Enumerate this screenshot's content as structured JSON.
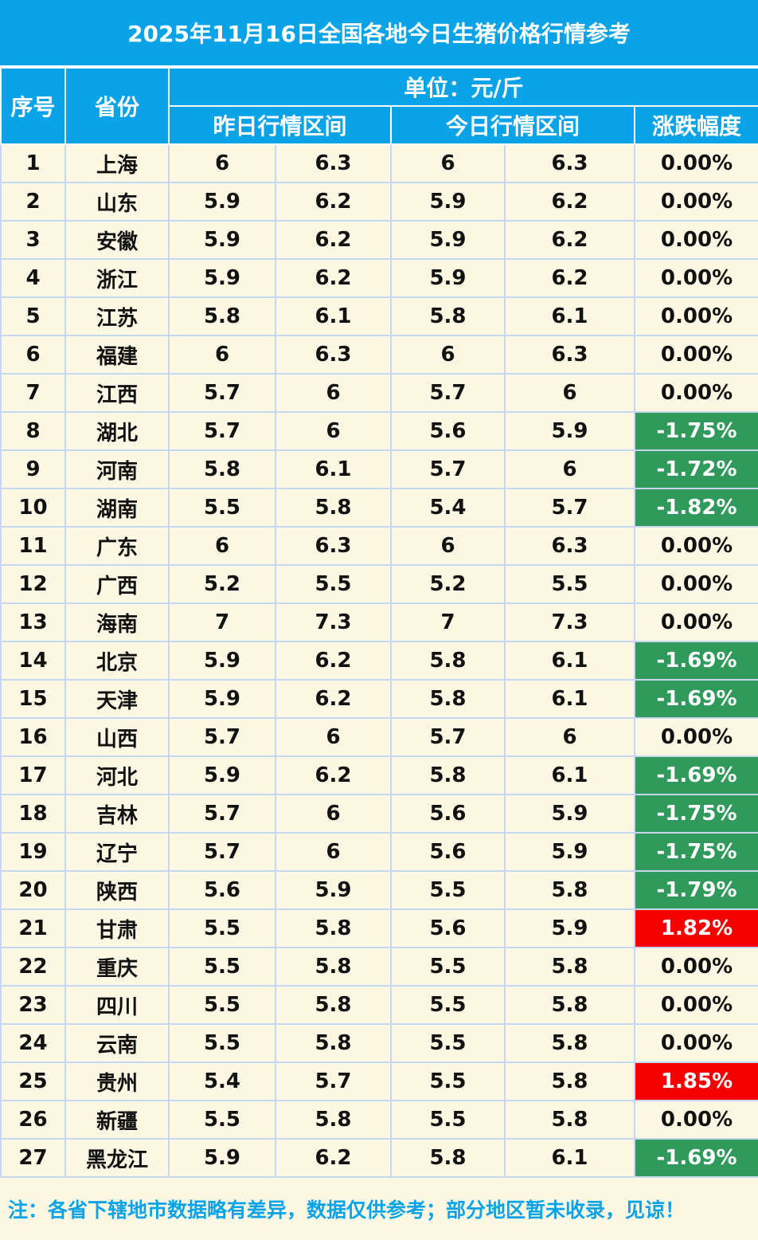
{
  "title": "2025年11月16日全国各地今日生猪价格行情参考",
  "headers": {
    "index": "序号",
    "province": "省份",
    "unit": "单位：元/斤",
    "yesterday": "昨日行情区间",
    "today": "今日行情区间",
    "change": "涨跌幅度"
  },
  "colors": {
    "header_bg": "#0aa3e8",
    "page_bg": "#fdf8e4",
    "decrease_bg": "#2f9a5c",
    "increase_bg": "#f40000",
    "note_text": "#0aa3e8"
  },
  "rows": [
    {
      "no": "1",
      "province": "上海",
      "y_low": "6",
      "y_high": "6.3",
      "t_low": "6",
      "t_high": "6.3",
      "change": "0.00%",
      "trend": "flat"
    },
    {
      "no": "2",
      "province": "山东",
      "y_low": "5.9",
      "y_high": "6.2",
      "t_low": "5.9",
      "t_high": "6.2",
      "change": "0.00%",
      "trend": "flat"
    },
    {
      "no": "3",
      "province": "安徽",
      "y_low": "5.9",
      "y_high": "6.2",
      "t_low": "5.9",
      "t_high": "6.2",
      "change": "0.00%",
      "trend": "flat"
    },
    {
      "no": "4",
      "province": "浙江",
      "y_low": "5.9",
      "y_high": "6.2",
      "t_low": "5.9",
      "t_high": "6.2",
      "change": "0.00%",
      "trend": "flat"
    },
    {
      "no": "5",
      "province": "江苏",
      "y_low": "5.8",
      "y_high": "6.1",
      "t_low": "5.8",
      "t_high": "6.1",
      "change": "0.00%",
      "trend": "flat"
    },
    {
      "no": "6",
      "province": "福建",
      "y_low": "6",
      "y_high": "6.3",
      "t_low": "6",
      "t_high": "6.3",
      "change": "0.00%",
      "trend": "flat"
    },
    {
      "no": "7",
      "province": "江西",
      "y_low": "5.7",
      "y_high": "6",
      "t_low": "5.7",
      "t_high": "6",
      "change": "0.00%",
      "trend": "flat"
    },
    {
      "no": "8",
      "province": "湖北",
      "y_low": "5.7",
      "y_high": "6",
      "t_low": "5.6",
      "t_high": "5.9",
      "change": "-1.75%",
      "trend": "down"
    },
    {
      "no": "9",
      "province": "河南",
      "y_low": "5.8",
      "y_high": "6.1",
      "t_low": "5.7",
      "t_high": "6",
      "change": "-1.72%",
      "trend": "down"
    },
    {
      "no": "10",
      "province": "湖南",
      "y_low": "5.5",
      "y_high": "5.8",
      "t_low": "5.4",
      "t_high": "5.7",
      "change": "-1.82%",
      "trend": "down"
    },
    {
      "no": "11",
      "province": "广东",
      "y_low": "6",
      "y_high": "6.3",
      "t_low": "6",
      "t_high": "6.3",
      "change": "0.00%",
      "trend": "flat"
    },
    {
      "no": "12",
      "province": "广西",
      "y_low": "5.2",
      "y_high": "5.5",
      "t_low": "5.2",
      "t_high": "5.5",
      "change": "0.00%",
      "trend": "flat"
    },
    {
      "no": "13",
      "province": "海南",
      "y_low": "7",
      "y_high": "7.3",
      "t_low": "7",
      "t_high": "7.3",
      "change": "0.00%",
      "trend": "flat"
    },
    {
      "no": "14",
      "province": "北京",
      "y_low": "5.9",
      "y_high": "6.2",
      "t_low": "5.8",
      "t_high": "6.1",
      "change": "-1.69%",
      "trend": "down"
    },
    {
      "no": "15",
      "province": "天津",
      "y_low": "5.9",
      "y_high": "6.2",
      "t_low": "5.8",
      "t_high": "6.1",
      "change": "-1.69%",
      "trend": "down"
    },
    {
      "no": "16",
      "province": "山西",
      "y_low": "5.7",
      "y_high": "6",
      "t_low": "5.7",
      "t_high": "6",
      "change": "0.00%",
      "trend": "flat"
    },
    {
      "no": "17",
      "province": "河北",
      "y_low": "5.9",
      "y_high": "6.2",
      "t_low": "5.8",
      "t_high": "6.1",
      "change": "-1.69%",
      "trend": "down"
    },
    {
      "no": "18",
      "province": "吉林",
      "y_low": "5.7",
      "y_high": "6",
      "t_low": "5.6",
      "t_high": "5.9",
      "change": "-1.75%",
      "trend": "down"
    },
    {
      "no": "19",
      "province": "辽宁",
      "y_low": "5.7",
      "y_high": "6",
      "t_low": "5.6",
      "t_high": "5.9",
      "change": "-1.75%",
      "trend": "down"
    },
    {
      "no": "20",
      "province": "陕西",
      "y_low": "5.6",
      "y_high": "5.9",
      "t_low": "5.5",
      "t_high": "5.8",
      "change": "-1.79%",
      "trend": "down"
    },
    {
      "no": "21",
      "province": "甘肃",
      "y_low": "5.5",
      "y_high": "5.8",
      "t_low": "5.6",
      "t_high": "5.9",
      "change": "1.82%",
      "trend": "up"
    },
    {
      "no": "22",
      "province": "重庆",
      "y_low": "5.5",
      "y_high": "5.8",
      "t_low": "5.5",
      "t_high": "5.8",
      "change": "0.00%",
      "trend": "flat"
    },
    {
      "no": "23",
      "province": "四川",
      "y_low": "5.5",
      "y_high": "5.8",
      "t_low": "5.5",
      "t_high": "5.8",
      "change": "0.00%",
      "trend": "flat"
    },
    {
      "no": "24",
      "province": "云南",
      "y_low": "5.5",
      "y_high": "5.8",
      "t_low": "5.5",
      "t_high": "5.8",
      "change": "0.00%",
      "trend": "flat"
    },
    {
      "no": "25",
      "province": "贵州",
      "y_low": "5.4",
      "y_high": "5.7",
      "t_low": "5.5",
      "t_high": "5.8",
      "change": "1.85%",
      "trend": "up"
    },
    {
      "no": "26",
      "province": "新疆",
      "y_low": "5.5",
      "y_high": "5.8",
      "t_low": "5.5",
      "t_high": "5.8",
      "change": "0.00%",
      "trend": "flat"
    },
    {
      "no": "27",
      "province": "黑龙江",
      "y_low": "5.9",
      "y_high": "6.2",
      "t_low": "5.8",
      "t_high": "6.1",
      "change": "-1.69%",
      "trend": "down"
    }
  ],
  "note": "注：各省下辖地市数据略有差异，数据仅供参考；部分地区暂未收录，见谅！"
}
